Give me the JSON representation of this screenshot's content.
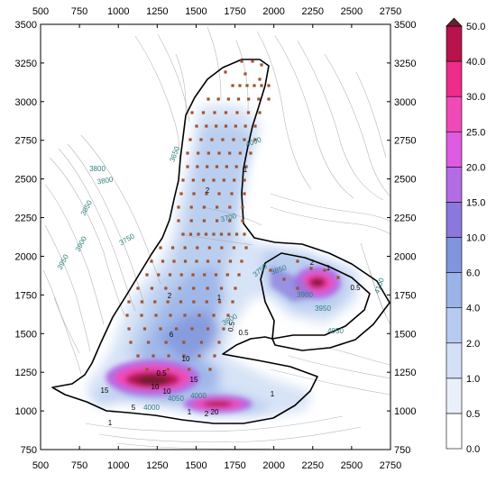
{
  "chart_data": {
    "type": "heatmap",
    "title": "",
    "xlabel": "",
    "ylabel": "",
    "xlim": [
      500,
      2750
    ],
    "ylim": [
      750,
      3500
    ],
    "x_ticks": [
      500,
      750,
      1000,
      1250,
      1500,
      1750,
      2000,
      2250,
      2500,
      2750
    ],
    "y_ticks": [
      750,
      1000,
      1250,
      1500,
      1750,
      2000,
      2250,
      2500,
      2750,
      3000,
      3250,
      3500
    ],
    "colorbar": {
      "levels": [
        0.0,
        0.5,
        1.0,
        2.0,
        4.0,
        6.0,
        10.0,
        15.0,
        20.0,
        25.0,
        30.0,
        40.0,
        50.0
      ],
      "labels": [
        "0.0",
        "0.5",
        "1.0",
        "2.0",
        "4.0",
        "6.0",
        "10.0",
        "15.0",
        "20.0",
        "25.0",
        "30.0",
        "40.0",
        "50.0"
      ],
      "colors": [
        "#ffffff",
        "#eaf0fa",
        "#d3e0f5",
        "#b6cbef",
        "#9ab3e8",
        "#7f95dc",
        "#8a78dc",
        "#b46ce4",
        "#de5ae0",
        "#f04ab8",
        "#ee2c8a",
        "#b7134d",
        "#6a1f2e"
      ],
      "extend": "max"
    },
    "hotspots": [
      {
        "x": 1220,
        "y": 1215,
        "peak": 45
      },
      {
        "x": 1640,
        "y": 1045,
        "peak": 30
      },
      {
        "x": 2280,
        "y": 1830,
        "peak": 42
      }
    ],
    "elevation_contour_labels": [
      "3800",
      "3850",
      "3900",
      "3950",
      "3750",
      "3650",
      "3800",
      "4000",
      "3700",
      "3750",
      "3800",
      "3850",
      "3900",
      "3950",
      "4050",
      "4000",
      "4050",
      "4000",
      "4100"
    ],
    "concentration_labels": [
      "2",
      "1",
      "2",
      "1",
      "0.5",
      "2",
      "0.5",
      "1",
      "0.5",
      "6",
      "10",
      "15",
      "15",
      "5",
      "10",
      "10",
      "20",
      "1",
      "1",
      "1",
      "2",
      "0.5"
    ]
  }
}
